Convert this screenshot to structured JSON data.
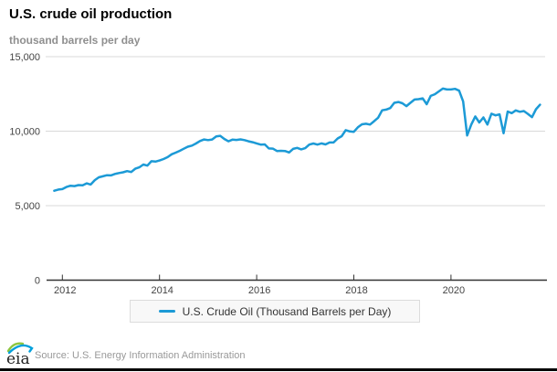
{
  "header": {
    "title": "U.S. crude oil production",
    "subtitle": "thousand barrels per day"
  },
  "legend": {
    "label": "U.S. Crude Oil (Thousand Barrels per Day)"
  },
  "footer": {
    "logo_text": "eia",
    "source": "Source: U.S. Energy Information Administration"
  },
  "colors": {
    "line": "#1c9ad6",
    "grid": "#d9d9d9",
    "axis": "#333333",
    "tick_label": "#444444",
    "legend_bg": "#f8f8f8",
    "legend_border": "#dcdcdc",
    "subtitle": "#8f8f8f",
    "source_text": "#999999",
    "logo_green": "#8dc63f",
    "logo_blue": "#00a0dc",
    "logo_text_color": "#222222"
  },
  "chart_data": {
    "type": "line",
    "title": "U.S. crude oil production",
    "ylabel": "thousand barrels per day",
    "series_name": "U.S. Crude Oil (Thousand Barrels per Day)",
    "frequency": "monthly",
    "x_start": {
      "year": 2011,
      "month": 11
    },
    "x_end": {
      "year": 2021,
      "month": 11
    },
    "x_ticks": [
      2012,
      2014,
      2016,
      2018,
      2020
    ],
    "y_ticks": [
      0,
      5000,
      10000,
      15000
    ],
    "ylim": [
      0,
      15000
    ],
    "grid": "horizontal",
    "legend_position": "bottom",
    "values": [
      6000,
      6080,
      6110,
      6250,
      6340,
      6310,
      6380,
      6360,
      6500,
      6420,
      6710,
      6900,
      6970,
      7040,
      7030,
      7130,
      7190,
      7240,
      7320,
      7260,
      7480,
      7570,
      7760,
      7690,
      7980,
      7960,
      8030,
      8130,
      8260,
      8450,
      8560,
      8680,
      8820,
      8960,
      9030,
      9170,
      9340,
      9440,
      9400,
      9440,
      9650,
      9690,
      9480,
      9320,
      9430,
      9410,
      9450,
      9400,
      9320,
      9260,
      9180,
      9100,
      9110,
      8840,
      8830,
      8670,
      8680,
      8670,
      8570,
      8810,
      8880,
      8780,
      8860,
      9100,
      9170,
      9100,
      9180,
      9110,
      9240,
      9240,
      9510,
      9660,
      10070,
      9980,
      9960,
      10260,
      10460,
      10500,
      10440,
      10670,
      10900,
      11400,
      11450,
      11550,
      11900,
      11960,
      11870,
      11680,
      11910,
      12120,
      12150,
      12200,
      11810,
      12370,
      12480,
      12670,
      12860,
      12800,
      12800,
      12840,
      12720,
      12000,
      9710,
      10440,
      10990,
      10580,
      10920,
      10440,
      11170,
      11060,
      11130,
      9860,
      11320,
      11210,
      11390,
      11300,
      11350,
      11160,
      10940,
      11470,
      11770
    ]
  }
}
